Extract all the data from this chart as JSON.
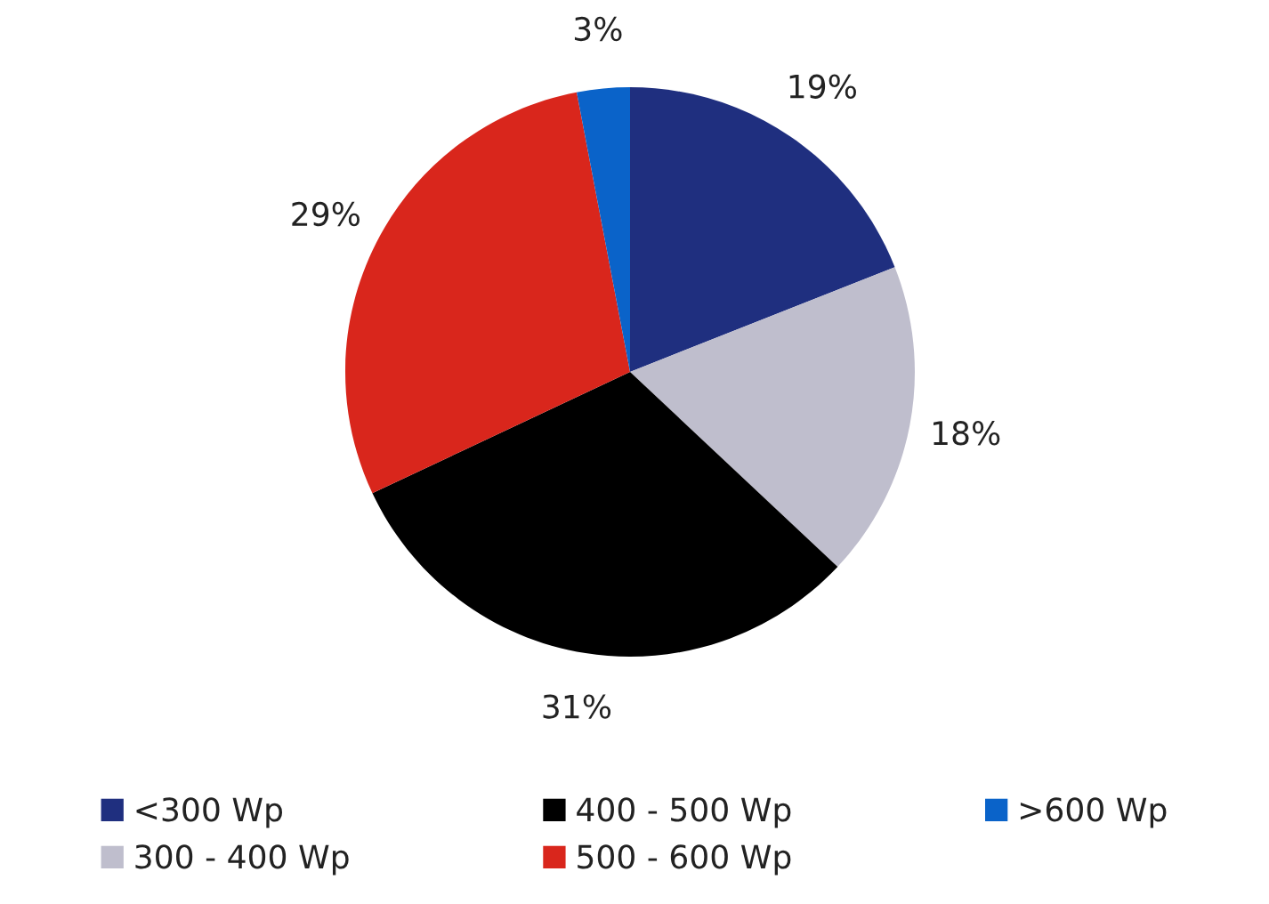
{
  "chart_data": {
    "type": "pie",
    "categories": [
      "<300 Wp",
      "300 - 400 Wp",
      "400 - 500 Wp",
      "500 - 600 Wp",
      ">600 Wp"
    ],
    "values": [
      19,
      18,
      31,
      29,
      3
    ],
    "colors": [
      "#1f2f7f",
      "#bfbecd",
      "#000000",
      "#d9261c",
      "#0a63c9"
    ],
    "value_labels": [
      "19%",
      "18%",
      "31%",
      "29%",
      "3%"
    ],
    "legend": "bottom"
  }
}
